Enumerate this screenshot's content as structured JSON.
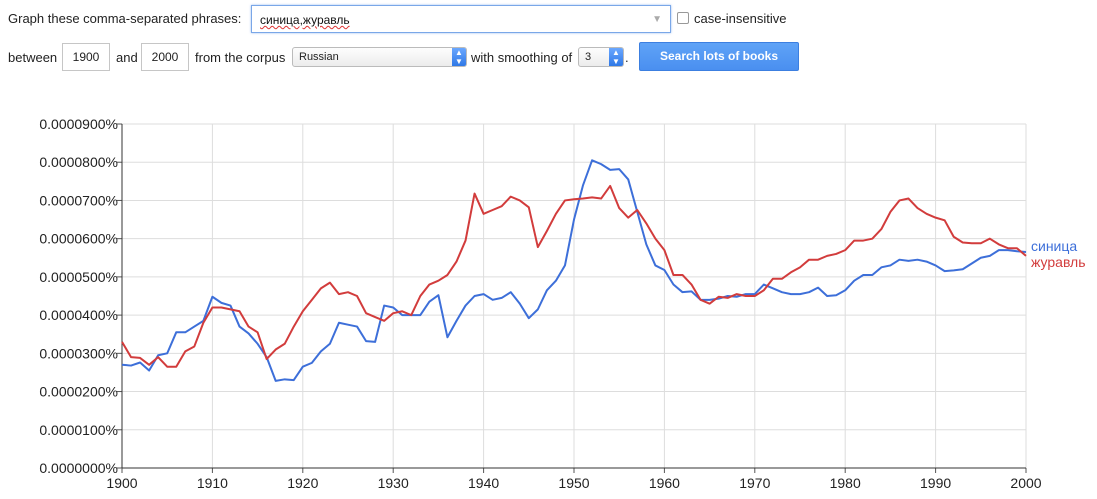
{
  "form": {
    "phrases_label": "Graph these comma-separated phrases:",
    "phrases_value": "синица,журавль",
    "case_insensitive_label": "case-insensitive",
    "between_label": "between",
    "year_start": "1900",
    "and_label": "and",
    "year_end": "2000",
    "corpus_label": "from the corpus",
    "corpus_value": "Russian",
    "smoothing_label": "with smoothing of",
    "smoothing_value": "3",
    "period": ".",
    "search_button": "Search lots of books"
  },
  "chart_data": {
    "type": "line",
    "title": "",
    "xlabel": "",
    "ylabel": "",
    "xlim": [
      1900,
      2000
    ],
    "ylim": [
      0,
      9e-07
    ],
    "grid": true,
    "legend_position": "right",
    "x_ticks": [
      "1900",
      "1910",
      "1920",
      "1930",
      "1940",
      "1950",
      "1960",
      "1970",
      "1980",
      "1990",
      "2000"
    ],
    "y_ticks": [
      "0.0000000%",
      "0.0000100%",
      "0.0000200%",
      "0.0000300%",
      "0.0000400%",
      "0.0000500%",
      "0.0000600%",
      "0.0000700%",
      "0.0000800%",
      "0.0000900%"
    ],
    "x": [
      1900,
      1901,
      1902,
      1903,
      1904,
      1905,
      1906,
      1907,
      1908,
      1909,
      1910,
      1911,
      1912,
      1913,
      1914,
      1915,
      1916,
      1917,
      1918,
      1919,
      1920,
      1921,
      1922,
      1923,
      1924,
      1925,
      1926,
      1927,
      1928,
      1929,
      1930,
      1931,
      1932,
      1933,
      1934,
      1935,
      1936,
      1937,
      1938,
      1939,
      1940,
      1941,
      1942,
      1943,
      1944,
      1945,
      1946,
      1947,
      1948,
      1949,
      1950,
      1951,
      1952,
      1953,
      1954,
      1955,
      1956,
      1957,
      1958,
      1959,
      1960,
      1961,
      1962,
      1963,
      1964,
      1965,
      1966,
      1967,
      1968,
      1969,
      1970,
      1971,
      1972,
      1973,
      1974,
      1975,
      1976,
      1977,
      1978,
      1979,
      1980,
      1981,
      1982,
      1983,
      1984,
      1985,
      1986,
      1987,
      1988,
      1989,
      1990,
      1991,
      1992,
      1993,
      1994,
      1995,
      1996,
      1997,
      1998,
      1999,
      2000
    ],
    "series": [
      {
        "name": "синица",
        "color": "#3d6fd9",
        "values": [
          0.27,
          0.268,
          0.276,
          0.255,
          0.295,
          0.3,
          0.355,
          0.355,
          0.37,
          0.385,
          0.448,
          0.432,
          0.425,
          0.37,
          0.352,
          0.325,
          0.29,
          0.228,
          0.232,
          0.23,
          0.265,
          0.275,
          0.305,
          0.325,
          0.38,
          0.375,
          0.37,
          0.332,
          0.33,
          0.425,
          0.42,
          0.4,
          0.4,
          0.4,
          0.435,
          0.452,
          0.342,
          0.385,
          0.425,
          0.45,
          0.455,
          0.44,
          0.445,
          0.46,
          0.43,
          0.392,
          0.415,
          0.465,
          0.49,
          0.53,
          0.65,
          0.74,
          0.805,
          0.795,
          0.78,
          0.782,
          0.755,
          0.67,
          0.585,
          0.53,
          0.518,
          0.48,
          0.46,
          0.462,
          0.44,
          0.44,
          0.443,
          0.45,
          0.448,
          0.455,
          0.455,
          0.48,
          0.47,
          0.46,
          0.455,
          0.455,
          0.46,
          0.472,
          0.45,
          0.452,
          0.465,
          0.49,
          0.505,
          0.505,
          0.525,
          0.53,
          0.545,
          0.542,
          0.545,
          0.54,
          0.53,
          0.515,
          0.517,
          0.52,
          0.535,
          0.55,
          0.555,
          0.57,
          0.57,
          0.567,
          0.565
        ]
      },
      {
        "name": "журавль",
        "color": "#d23c3c",
        "values": [
          0.33,
          0.29,
          0.288,
          0.27,
          0.29,
          0.265,
          0.265,
          0.305,
          0.318,
          0.38,
          0.42,
          0.42,
          0.415,
          0.41,
          0.37,
          0.355,
          0.285,
          0.31,
          0.325,
          0.37,
          0.41,
          0.44,
          0.47,
          0.485,
          0.455,
          0.46,
          0.45,
          0.405,
          0.395,
          0.385,
          0.405,
          0.41,
          0.4,
          0.45,
          0.48,
          0.49,
          0.505,
          0.54,
          0.595,
          0.718,
          0.665,
          0.675,
          0.685,
          0.71,
          0.7,
          0.682,
          0.578,
          0.62,
          0.665,
          0.7,
          0.703,
          0.705,
          0.708,
          0.705,
          0.738,
          0.68,
          0.655,
          0.675,
          0.64,
          0.6,
          0.57,
          0.505,
          0.505,
          0.48,
          0.44,
          0.43,
          0.448,
          0.445,
          0.455,
          0.45,
          0.45,
          0.465,
          0.495,
          0.495,
          0.512,
          0.525,
          0.545,
          0.545,
          0.555,
          0.56,
          0.57,
          0.595,
          0.595,
          0.6,
          0.625,
          0.67,
          0.7,
          0.705,
          0.68,
          0.665,
          0.655,
          0.648,
          0.605,
          0.59,
          0.588,
          0.588,
          0.6,
          0.585,
          0.575,
          0.575,
          0.555
        ]
      }
    ]
  }
}
